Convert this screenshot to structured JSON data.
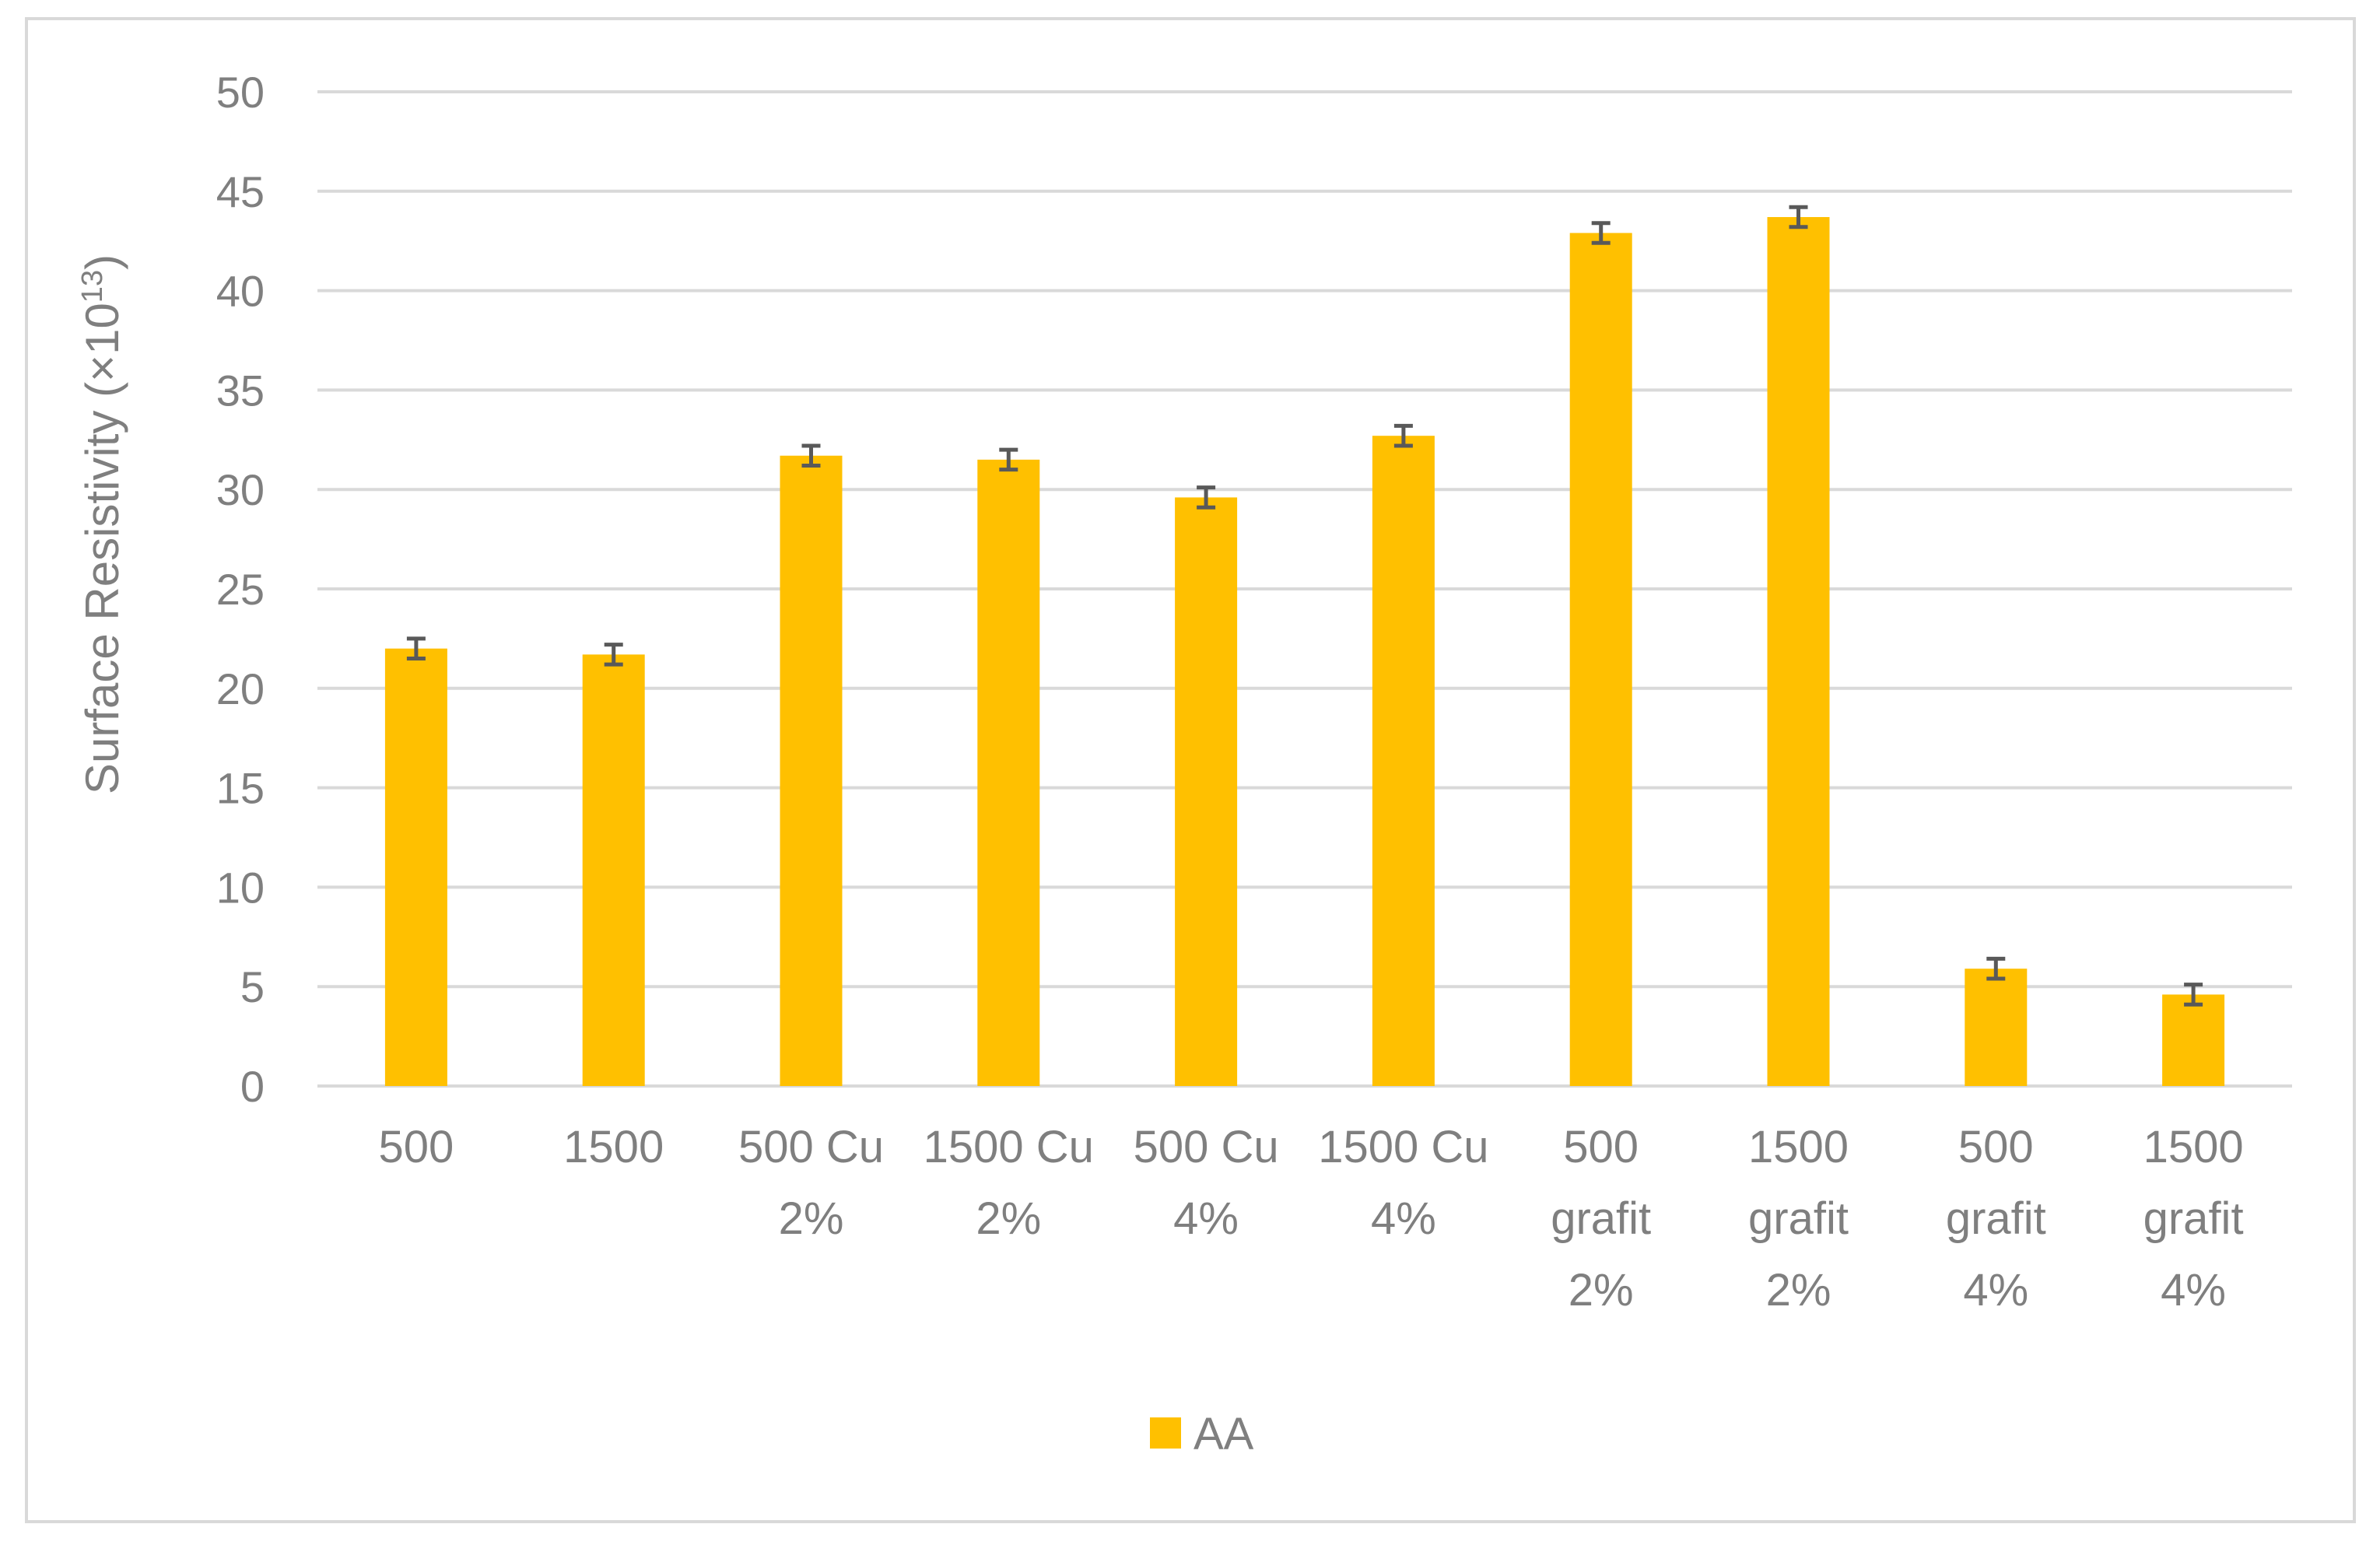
{
  "chart_data": {
    "type": "bar",
    "title": "",
    "xlabel": "",
    "ylabel": {
      "main": "Surface Resistivity (×10",
      "superscript": "13",
      "close": ")"
    },
    "ylim": [
      0,
      50
    ],
    "yticks": [
      0,
      5,
      10,
      15,
      20,
      25,
      30,
      35,
      40,
      45,
      50
    ],
    "grid": "horizontal",
    "legend_position": "bottom",
    "categories": [
      [
        "500"
      ],
      [
        "1500"
      ],
      [
        "500 Cu",
        "2%"
      ],
      [
        "1500 Cu",
        "2%"
      ],
      [
        "500 Cu",
        "4%"
      ],
      [
        "1500 Cu",
        "4%"
      ],
      [
        "500",
        "grafit",
        "2%"
      ],
      [
        "1500",
        "grafit",
        "2%"
      ],
      [
        "500",
        "grafit",
        "4%"
      ],
      [
        "1500",
        "grafit",
        "4%"
      ]
    ],
    "series": [
      {
        "name": "AA",
        "color": "#ffc000",
        "values": [
          22.0,
          21.7,
          31.7,
          31.5,
          29.6,
          32.7,
          42.9,
          43.7,
          5.9,
          4.6
        ],
        "error": [
          0.5,
          0.5,
          0.5,
          0.5,
          0.5,
          0.5,
          0.5,
          0.5,
          0.5,
          0.5
        ]
      }
    ],
    "colors": {
      "bar": "#ffc000",
      "error_bar": "#595959",
      "grid": "#d9d9d9",
      "text": "#7f7f7f"
    }
  }
}
